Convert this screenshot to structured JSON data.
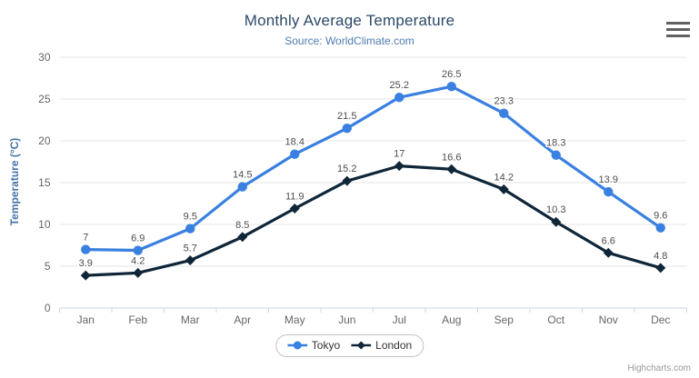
{
  "title": "Monthly Average Temperature",
  "subtitle": "Source: WorldClimate.com",
  "credits": "Highcharts.com",
  "icons": {
    "context_menu": "hamburger-menu-icon"
  },
  "colors": {
    "title": "#2b4a68",
    "subtitle": "#4e7cb1",
    "axis_title": "#4573a6",
    "axis_labels": "#666666",
    "data_labels": "#4d4d4d",
    "gridline": "#e6e6e6",
    "axis_line": "#ccd6eb",
    "legend_border": "#c3c3c3",
    "tokyo": "#3a80e1",
    "london": "#0f2639"
  },
  "chart_data": {
    "type": "line",
    "title": "Monthly Average Temperature",
    "subtitle": "Source: WorldClimate.com",
    "categories": [
      "Jan",
      "Feb",
      "Mar",
      "Apr",
      "May",
      "Jun",
      "Jul",
      "Aug",
      "Sep",
      "Oct",
      "Nov",
      "Dec"
    ],
    "series": [
      {
        "name": "Tokyo",
        "marker": "circle",
        "color": "#3a80e1",
        "values": [
          7,
          6.9,
          9.5,
          14.5,
          18.4,
          21.5,
          25.2,
          26.5,
          23.3,
          18.3,
          13.9,
          9.6
        ]
      },
      {
        "name": "London",
        "marker": "diamond",
        "color": "#0f2639",
        "values": [
          3.9,
          4.2,
          5.7,
          8.5,
          11.9,
          15.2,
          17,
          16.6,
          14.2,
          10.3,
          6.6,
          4.8
        ]
      }
    ],
    "xlabel": "",
    "ylabel": "Temperature (°C)",
    "ylim": [
      0,
      30
    ],
    "yticks": [
      0,
      5,
      10,
      15,
      20,
      25,
      30
    ],
    "grid": "horizontal",
    "legend_position": "bottom",
    "data_labels_visible": true
  }
}
